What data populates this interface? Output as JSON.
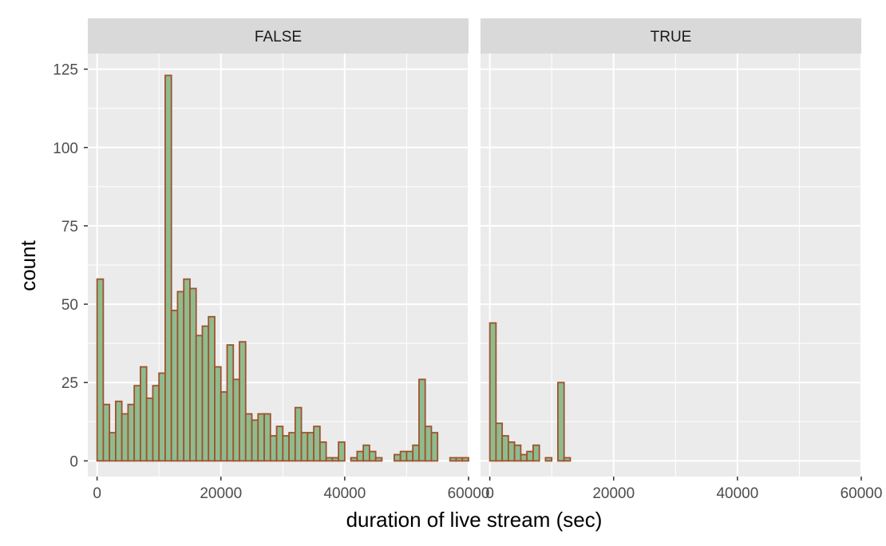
{
  "chart_data": {
    "type": "bar",
    "subtype": "faceted-histogram",
    "xlabel": "duration of live stream (sec)",
    "ylabel": "count",
    "xlim": [
      -1500,
      60000
    ],
    "ylim": [
      -5,
      130
    ],
    "x_ticks": [
      0,
      20000,
      40000,
      60000
    ],
    "x_tick_labels": [
      "0",
      "20000",
      "40000",
      "60000"
    ],
    "y_ticks": [
      0,
      25,
      50,
      75,
      100,
      125
    ],
    "y_tick_labels": [
      "0",
      "25",
      "50",
      "75",
      "100",
      "125"
    ],
    "bin_width": 1000,
    "bin_start": 0,
    "grid": true,
    "legend": "none",
    "colors": {
      "panel_background": "#ebebeb",
      "grid": "#ffffff",
      "strip_background": "#d9d9d9",
      "bar_fill": "#8fbc8f",
      "bar_outline": "#a0522d"
    },
    "facets": [
      {
        "label": "FALSE",
        "values": [
          58,
          18,
          9,
          19,
          15,
          18,
          24,
          30,
          20,
          24,
          28,
          123,
          48,
          54,
          58,
          55,
          40,
          43,
          46,
          30,
          22,
          37,
          26,
          38,
          15,
          13,
          15,
          15,
          8,
          11,
          8,
          9,
          17,
          9,
          9,
          11,
          6,
          1,
          1,
          6,
          0,
          1,
          3,
          5,
          3,
          1,
          0,
          0,
          2,
          3,
          3,
          5,
          26,
          11,
          9,
          0,
          0,
          1,
          1,
          1
        ]
      },
      {
        "label": "TRUE",
        "values": [
          44,
          12,
          8,
          6,
          5,
          2,
          3,
          5,
          0,
          1,
          0,
          25,
          1,
          0,
          0,
          0,
          0,
          0,
          0,
          0,
          0,
          0,
          0,
          0,
          0,
          0,
          0,
          0,
          0,
          0,
          0,
          0,
          0,
          0,
          0,
          0,
          0,
          0,
          0,
          0,
          0,
          0,
          0,
          0,
          0,
          0,
          0,
          0,
          0,
          0,
          0,
          0,
          0,
          0,
          0,
          0,
          0,
          0,
          0
        ]
      }
    ]
  }
}
